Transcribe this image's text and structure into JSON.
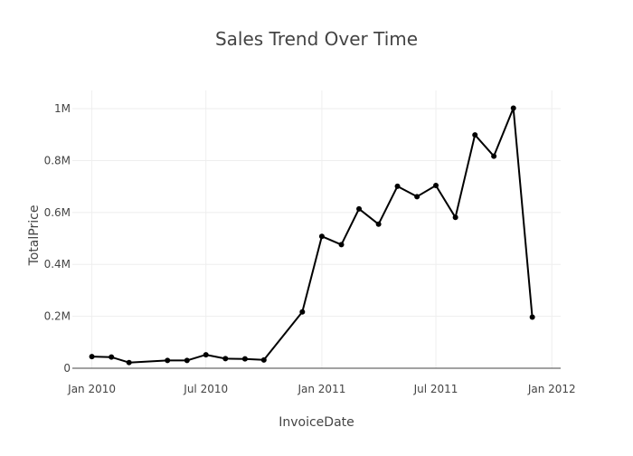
{
  "chart_data": {
    "type": "line",
    "title": "Sales Trend Over Time",
    "xlabel": "InvoiceDate",
    "ylabel": "TotalPrice",
    "x_type": "date",
    "xlim": [
      "2009-12-01",
      "2012-01-15"
    ],
    "ylim": [
      0,
      1070000
    ],
    "x_ticks": [
      {
        "value": "2010-01-01",
        "label": "Jan 2010"
      },
      {
        "value": "2010-07-01",
        "label": "Jul 2010"
      },
      {
        "value": "2011-01-01",
        "label": "Jan 2011"
      },
      {
        "value": "2011-07-01",
        "label": "Jul 2011"
      },
      {
        "value": "2012-01-01",
        "label": "Jan 2012"
      }
    ],
    "y_ticks": [
      {
        "value": 0,
        "label": "0"
      },
      {
        "value": 200000,
        "label": "0.2M"
      },
      {
        "value": 400000,
        "label": "0.4M"
      },
      {
        "value": 600000,
        "label": "0.6M"
      },
      {
        "value": 800000,
        "label": "0.8M"
      },
      {
        "value": 1000000,
        "label": "1M"
      }
    ],
    "grid": true,
    "legend": "none",
    "series": [
      {
        "color": "#000000",
        "mode": "lines+markers",
        "x": [
          "2010-01-01",
          "2010-02-01",
          "2010-03-01",
          "2010-05-01",
          "2010-06-01",
          "2010-07-01",
          "2010-08-01",
          "2010-09-01",
          "2010-10-01",
          "2010-12-01",
          "2011-01-01",
          "2011-02-01",
          "2011-03-01",
          "2011-04-01",
          "2011-05-01",
          "2011-06-01",
          "2011-07-01",
          "2011-08-01",
          "2011-09-01",
          "2011-10-01",
          "2011-11-01",
          "2011-12-01"
        ],
        "y": [
          45000,
          43000,
          22000,
          30000,
          30000,
          52000,
          37000,
          36000,
          32000,
          217000,
          508000,
          476000,
          614000,
          555000,
          701000,
          661000,
          704000,
          581000,
          899000,
          817000,
          1002000,
          197000
        ]
      }
    ]
  }
}
